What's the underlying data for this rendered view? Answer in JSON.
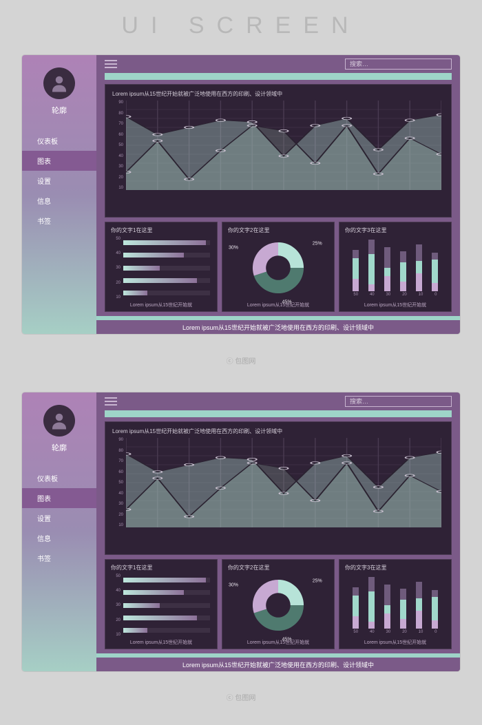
{
  "page_header": "UI SCREEN",
  "attribution": "ⓒ 包图网",
  "dashboard": {
    "profile_label": "轮廓",
    "nav": [
      {
        "label": "仪表板",
        "active": false
      },
      {
        "label": "图表",
        "active": true
      },
      {
        "label": "设置",
        "active": false
      },
      {
        "label": "信息",
        "active": false
      },
      {
        "label": "书签",
        "active": false
      }
    ],
    "search_placeholder": "搜索…",
    "big_panel": {
      "title": "Lorem ipsum从15世纪开始就被广泛地使用在西方的印刷、设计领域中",
      "type": "area",
      "y_ticks": [
        90,
        80,
        70,
        60,
        50,
        40,
        30,
        20,
        10
      ],
      "ylim": [
        0,
        100
      ],
      "series_a": [
        82,
        62,
        70,
        78,
        76,
        38,
        72,
        80,
        45,
        78,
        84
      ],
      "series_b": [
        20,
        55,
        12,
        44,
        72,
        66,
        30,
        72,
        18,
        58,
        40
      ],
      "fill_a": "#b7e3d8",
      "fill_b": "#7a8c86",
      "fill_opacity": 0.35,
      "stroke": "#2a2230",
      "marker_stroke": "#c9c0cf",
      "grid_color": "#4a3b52",
      "background": "#2f2236"
    },
    "small_panels": {
      "hbar": {
        "title": "你的文字1在这里",
        "footer": "Lorem ipsum从15世纪开始就",
        "y_ticks": [
          50,
          40,
          30,
          20,
          10
        ],
        "values": [
          95,
          70,
          42,
          85,
          28
        ],
        "track_color": "#3d3044",
        "fill_from": "#bde6dc",
        "fill_to": "#8d7199"
      },
      "donut": {
        "title": "你的文字2在这里",
        "footer": "Lorem ipsum从15世纪开始就",
        "slices": [
          {
            "label": "25%",
            "value": 25,
            "color": "#b7e3d8"
          },
          {
            "label": "45%",
            "value": 45,
            "color": "#4f7a6f"
          },
          {
            "label": "30%",
            "value": 30,
            "color": "#c7a9d2"
          }
        ],
        "inner_radius": 0.48
      },
      "vbar": {
        "title": "你的文字3在这里",
        "footer": "Lorem ipsum从15世纪开始就",
        "x_labels": [
          "50",
          "40",
          "30",
          "20",
          "10",
          "0"
        ],
        "bars": [
          {
            "a": 18,
            "b": 30,
            "c": 12
          },
          {
            "a": 10,
            "b": 44,
            "c": 22
          },
          {
            "a": 22,
            "b": 12,
            "c": 30
          },
          {
            "a": 14,
            "b": 28,
            "c": 16
          },
          {
            "a": 26,
            "b": 18,
            "c": 24
          },
          {
            "a": 12,
            "b": 34,
            "c": 10
          }
        ],
        "ylim": 80,
        "seg_colors": {
          "a": "#c7a9d2",
          "b": "#a1d8cb",
          "c": "#6f5b7c"
        }
      }
    },
    "footer_text": "Lorem ipsum从15世纪开始就被广泛地使用在西方的印刷、设计领域中"
  },
  "colors": {
    "page_bg": "#d4d4d4",
    "sidebar_grad_top": "#ae82b6",
    "sidebar_grad_mid": "#9a8db2",
    "sidebar_grad_bot": "#a6cfc5",
    "main_bg": "#7b5a88",
    "panel_bg": "#2f2236",
    "panel_border": "#4b3a52",
    "teal": "#9ed4c8",
    "nav_active": "#845a92"
  }
}
